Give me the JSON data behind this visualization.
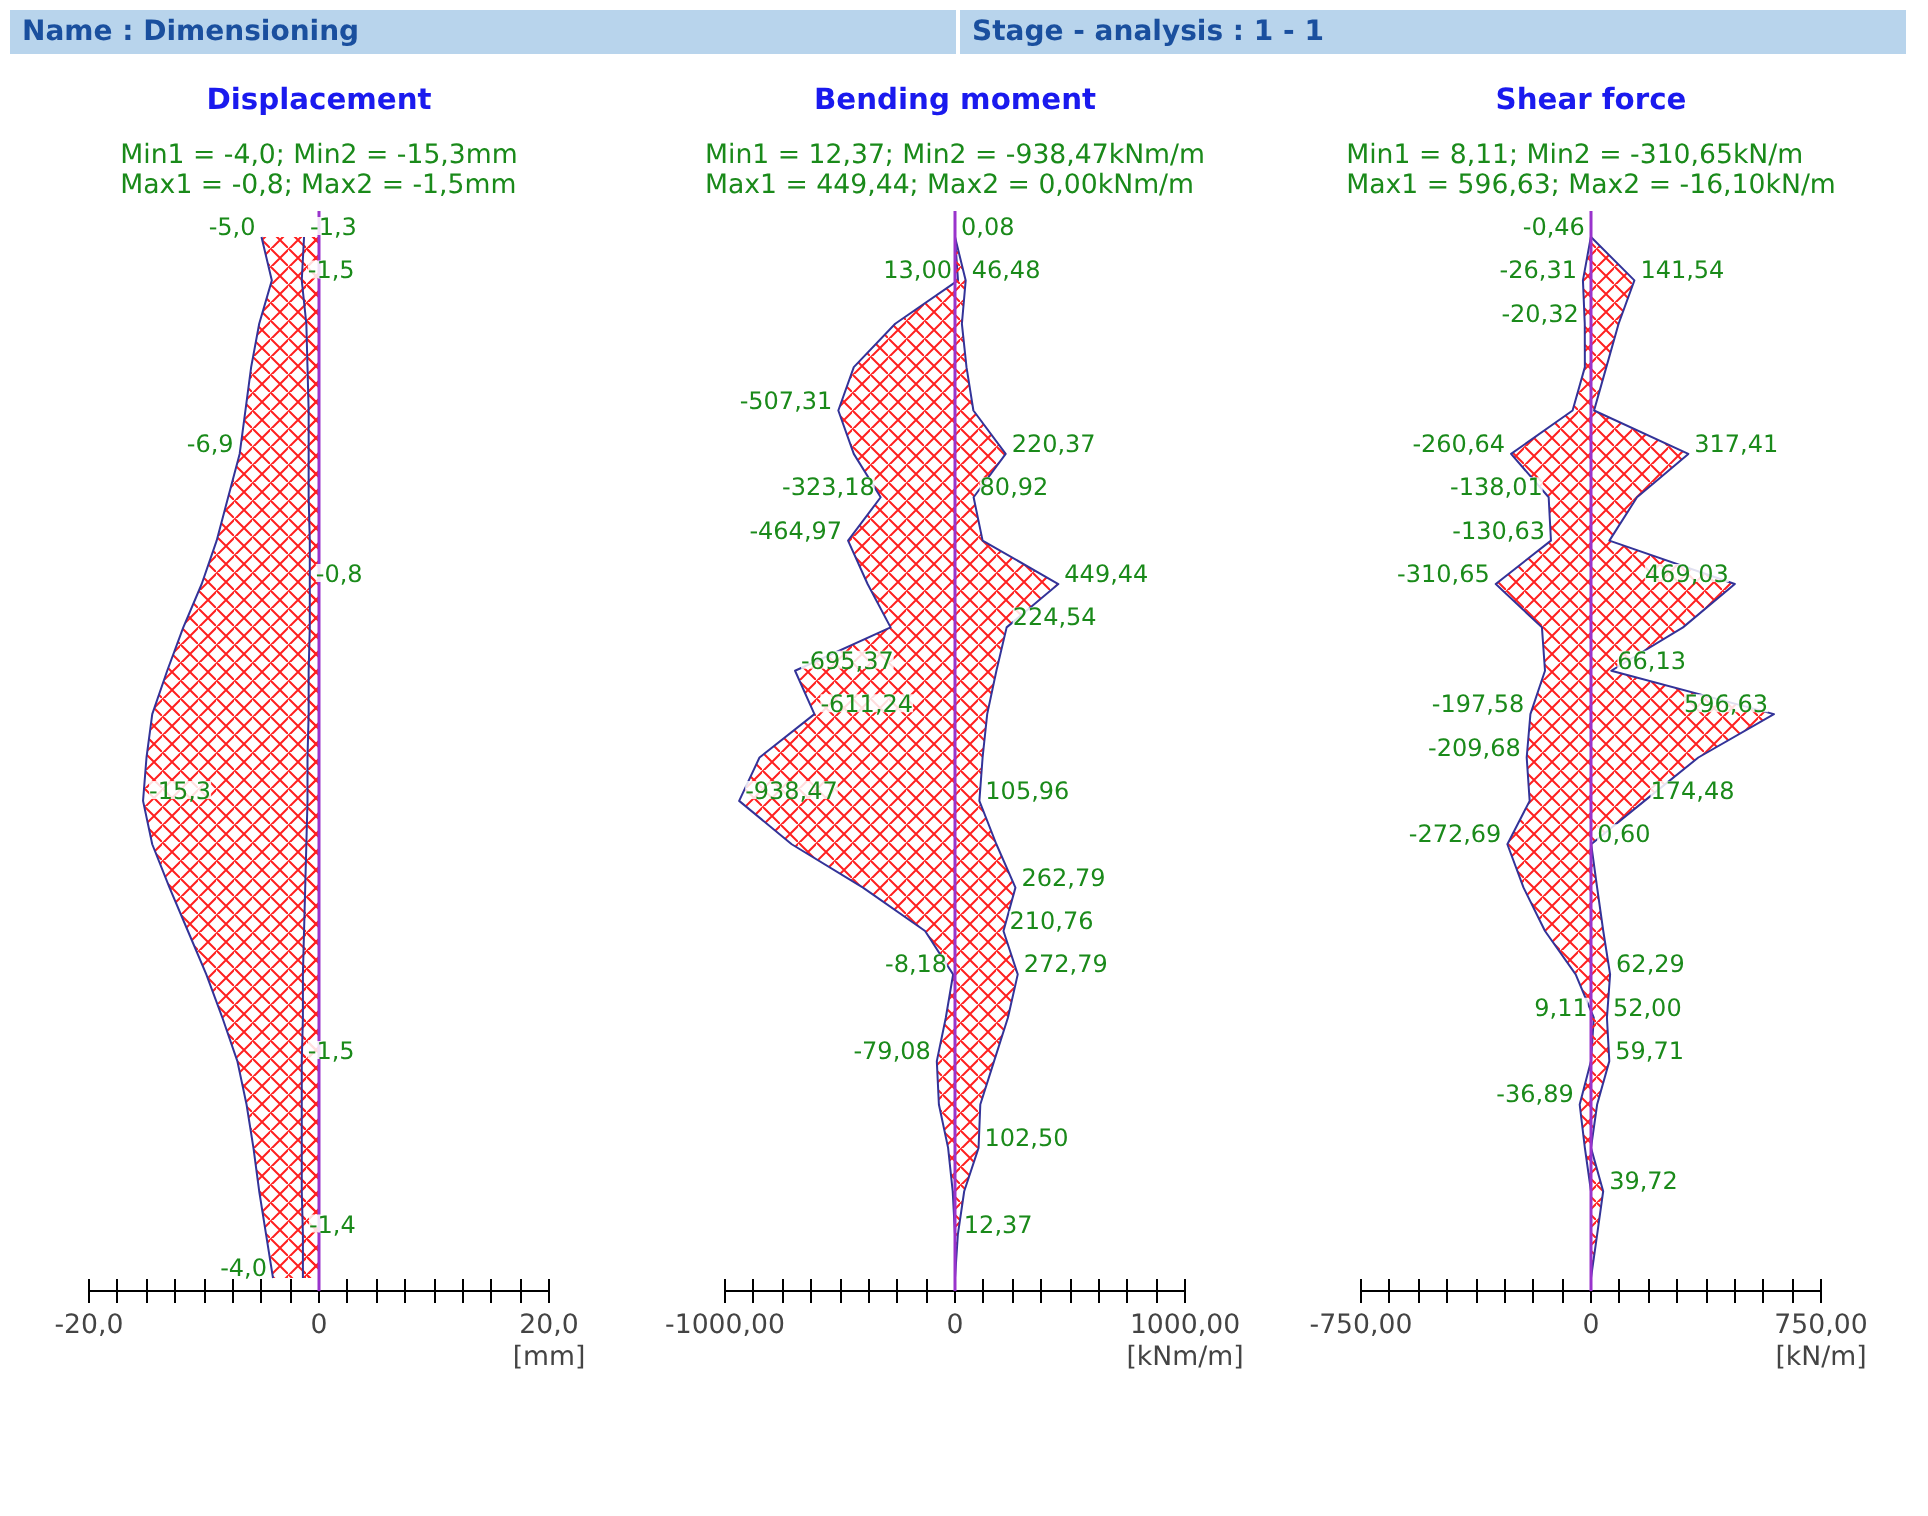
{
  "chart_data": [
    {
      "type": "area",
      "title": "Displacement",
      "subtitle": "Min1 = -4,0; Min2 = -15,3mm\nMax1 = -0,8; Max2 = -1,5mm",
      "xlabel": "[mm]",
      "orientation": "horizontal",
      "tick_labels": "x",
      "annotations": [
        "Name : Dimensioning",
        "Stage - analysis : 1 - 1"
      ],
      "categories": [
        null,
        null,
        null,
        null,
        null,
        null,
        null,
        null,
        null,
        null,
        null,
        null,
        null,
        null,
        null,
        null,
        null,
        null,
        null,
        null,
        null,
        null,
        null,
        null,
        null
      ],
      "xlim": [
        -20,
        20
      ],
      "xticks": [
        {
          "value": -20,
          "label": "-20,0"
        },
        {
          "value": -17.5,
          "label": null
        },
        {
          "value": -15,
          "label": null
        },
        {
          "value": -12.5,
          "label": null
        },
        {
          "value": -10,
          "label": null
        },
        {
          "value": -7.5,
          "label": null
        },
        {
          "value": -5,
          "label": null
        },
        {
          "value": -2.5,
          "label": null
        },
        0,
        {
          "value": 2.5,
          "label": null
        },
        {
          "value": 5,
          "label": null
        },
        {
          "value": 7.5,
          "label": null
        },
        {
          "value": 10,
          "label": null
        },
        {
          "value": 12.5,
          "label": null
        },
        {
          "value": 15,
          "label": null
        },
        {
          "value": 17.5,
          "label": null
        },
        {
          "value": 20,
          "label": "20,0"
        }
      ],
      "ref_lines": [
        {
          "axis": "x",
          "value": 0,
          "color": "#9933cc"
        }
      ],
      "series": [
        {
          "color": "#333399",
          "values": [
            -5.0,
            -4.1,
            -5.2,
            -5.9,
            -6.4,
            -6.9,
            -7.9,
            -8.9,
            -10.2,
            -11.8,
            -13.2,
            -14.5,
            -15.0,
            -15.3,
            -14.5,
            -13.0,
            -11.4,
            -9.8,
            -8.4,
            -7.1,
            -6.3,
            -5.7,
            -5.2,
            -4.6,
            -4.0
          ],
          "value_labels": [
            "-5,0",
            null,
            null,
            null,
            null,
            "-6,9",
            null,
            null,
            null,
            null,
            null,
            null,
            null,
            "-15,3",
            null,
            null,
            null,
            null,
            null,
            null,
            null,
            null,
            null,
            null,
            "-4,0"
          ]
        },
        {
          "color": "#333399",
          "values": [
            -1.3,
            -1.5,
            -1.1,
            -1.0,
            -0.9,
            -0.9,
            -0.9,
            -0.8,
            -0.8,
            -0.8,
            -0.9,
            -0.9,
            -1.0,
            -1.0,
            -1.1,
            -1.2,
            -1.3,
            -1.4,
            -1.4,
            -1.5,
            -1.5,
            -1.5,
            -1.5,
            -1.4,
            -1.4
          ],
          "value_labels": [
            "-1,3",
            "-1,5",
            null,
            null,
            null,
            null,
            null,
            null,
            "-0,8",
            null,
            null,
            null,
            null,
            null,
            null,
            null,
            null,
            null,
            null,
            "-1,5",
            null,
            null,
            null,
            "-1,4",
            null
          ]
        }
      ]
    },
    {
      "type": "area",
      "title": "Bending moment",
      "subtitle": "Min1 = 12,37; Min2 = -938,47kNm/m\nMax1 = 449,44; Max2 = 0,00kNm/m",
      "xlabel": "[kNm/m]",
      "orientation": "horizontal",
      "tick_labels": "x",
      "categories": [
        null,
        null,
        null,
        null,
        null,
        null,
        null,
        null,
        null,
        null,
        null,
        null,
        null,
        null,
        null,
        null,
        null,
        null,
        null,
        null,
        null,
        null,
        null,
        null,
        null
      ],
      "xlim": [
        -1000,
        1000
      ],
      "xticks": [
        {
          "value": -1000,
          "label": "-1000,00"
        },
        {
          "value": -875,
          "label": null
        },
        {
          "value": -750,
          "label": null
        },
        {
          "value": -625,
          "label": null
        },
        {
          "value": -500,
          "label": null
        },
        {
          "value": -375,
          "label": null
        },
        {
          "value": -250,
          "label": null
        },
        {
          "value": -125,
          "label": null
        },
        0,
        {
          "value": 125,
          "label": null
        },
        {
          "value": 250,
          "label": null
        },
        {
          "value": 375,
          "label": null
        },
        {
          "value": 500,
          "label": null
        },
        {
          "value": 625,
          "label": null
        },
        {
          "value": 750,
          "label": null
        },
        {
          "value": 875,
          "label": null
        },
        {
          "value": 1000,
          "label": "1000,00"
        }
      ],
      "ref_lines": [
        {
          "axis": "x",
          "value": 0,
          "color": "#9933cc"
        }
      ],
      "series": [
        {
          "color": "#333399",
          "values": [
            0,
            13.0,
            -260,
            -440,
            -507.31,
            -440,
            -323.18,
            -464.97,
            -380,
            -280,
            -695.37,
            -611.24,
            -850,
            -938.47,
            -710,
            -400,
            -130,
            -8.18,
            -40,
            -79.08,
            -70,
            -30,
            -10,
            0,
            0
          ],
          "value_labels": [
            null,
            "13,00",
            null,
            null,
            "-507,31",
            null,
            "-323,18",
            "-464,97",
            null,
            null,
            "-695,37",
            "-611,24",
            null,
            "-938,47",
            null,
            null,
            null,
            "-8,18",
            null,
            "-79,08",
            null,
            null,
            null,
            null,
            null
          ]
        },
        {
          "color": "#333399",
          "values": [
            0.08,
            46.48,
            30,
            50,
            80,
            220.37,
            80.92,
            120,
            449.44,
            224.54,
            180,
            140,
            120,
            105.96,
            180,
            262.79,
            210.76,
            272.79,
            230,
            170,
            110,
            102.5,
            40,
            12.37,
            0
          ],
          "value_labels": [
            "0,08",
            "46,48",
            null,
            null,
            null,
            "220,37",
            "80,92",
            null,
            "449,44",
            "224,54",
            null,
            null,
            null,
            "105,96",
            null,
            "262,79",
            "210,76",
            "272,79",
            null,
            null,
            null,
            "102,50",
            null,
            "12,37",
            null
          ]
        }
      ]
    },
    {
      "type": "area",
      "title": "Shear force",
      "subtitle": "Min1 = 8,11; Min2 = -310,65kN/m\nMax1 = 596,63; Max2 = -16,10kN/m",
      "xlabel": "[kN/m]",
      "orientation": "horizontal",
      "tick_labels": "x",
      "categories": [
        null,
        null,
        null,
        null,
        null,
        null,
        null,
        null,
        null,
        null,
        null,
        null,
        null,
        null,
        null,
        null,
        null,
        null,
        null,
        null,
        null,
        null,
        null,
        null,
        null
      ],
      "xlim": [
        -750,
        750
      ],
      "xticks": [
        {
          "value": -750,
          "label": "-750,00"
        },
        {
          "value": -656.25,
          "label": null
        },
        {
          "value": -562.5,
          "label": null
        },
        {
          "value": -468.75,
          "label": null
        },
        {
          "value": -375,
          "label": null
        },
        {
          "value": -281.25,
          "label": null
        },
        {
          "value": -187.5,
          "label": null
        },
        {
          "value": -93.75,
          "label": null
        },
        0,
        {
          "value": 93.75,
          "label": null
        },
        {
          "value": 187.5,
          "label": null
        },
        {
          "value": 281.25,
          "label": null
        },
        {
          "value": 375,
          "label": null
        },
        {
          "value": 468.75,
          "label": null
        },
        {
          "value": 562.5,
          "label": null
        },
        {
          "value": 656.25,
          "label": null
        },
        {
          "value": 750,
          "label": "750,00"
        }
      ],
      "ref_lines": [
        {
          "axis": "x",
          "value": 0,
          "color": "#9933cc"
        }
      ],
      "series": [
        {
          "color": "#333399",
          "values": [
            -0.46,
            -26.31,
            -20.32,
            -20,
            -60,
            -260.64,
            -138.01,
            -130.63,
            -310.65,
            -160,
            -150,
            -197.58,
            -209.68,
            -200,
            -272.69,
            -220,
            -150,
            -50,
            9.11,
            0,
            -36.89,
            -20,
            0,
            0,
            0
          ],
          "value_labels": [
            "-0,46",
            "-26,31",
            "-20,32",
            null,
            null,
            "-260,64",
            "-138,01",
            "-130,63",
            "-310,65",
            null,
            null,
            "-197,58",
            "-209,68",
            null,
            "-272,69",
            null,
            null,
            null,
            "9,11",
            null,
            "-36,89",
            null,
            null,
            null,
            null
          ]
        },
        {
          "color": "#333399",
          "values": [
            0,
            141.54,
            90,
            50,
            10,
            317.41,
            150,
            60,
            469.03,
            300,
            66.13,
            596.63,
            350,
            174.48,
            0.6,
            20,
            40,
            62.29,
            52.0,
            59.71,
            20,
            0,
            39.72,
            20,
            0
          ],
          "value_labels": [
            null,
            "141,54",
            null,
            null,
            null,
            "317,41",
            null,
            null,
            "469,03",
            null,
            "66,13",
            "596,63",
            null,
            "174,48",
            "0,60",
            null,
            null,
            "62,29",
            "52,00",
            "59,71",
            null,
            null,
            "39,72",
            null,
            null
          ]
        }
      ]
    }
  ]
}
